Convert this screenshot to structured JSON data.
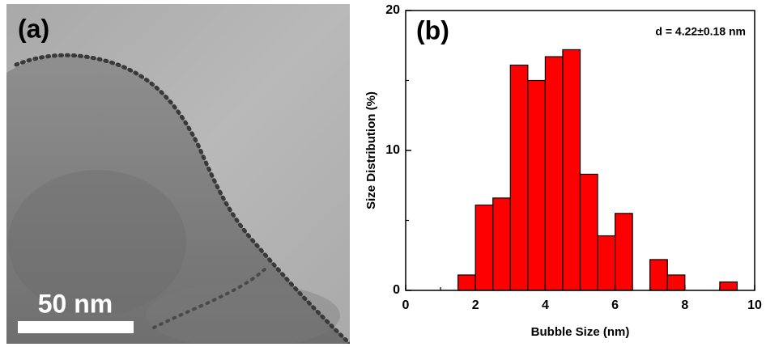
{
  "image_panel": {
    "label": "(a)",
    "scale_bar": "50 nm"
  },
  "chart_data": {
    "type": "histogram",
    "panel_label": "(b)",
    "annotation": "d = 4.22±0.18 nm",
    "x_label": "Bubble Size (nm)",
    "y_label": "Size Distribution (%)",
    "bins": [
      1.5,
      2,
      2.5,
      3,
      3.5,
      4,
      4.5,
      5,
      5.5,
      6,
      6.5,
      7,
      7.5,
      8,
      8.5,
      9,
      9.5
    ],
    "values": [
      1.1,
      6.1,
      6.6,
      16.1,
      15.0,
      16.7,
      17.2,
      8.3,
      3.9,
      5.5,
      0,
      2.2,
      1.1,
      0,
      0,
      0.6
    ],
    "color": "#ff0000",
    "xlim": [
      0,
      10
    ],
    "xticks": [
      0,
      2,
      4,
      6,
      8,
      10
    ],
    "xminorticks": [
      1,
      3,
      5,
      7,
      9
    ],
    "ylim": [
      0,
      20
    ],
    "yticks": [
      0,
      10,
      20
    ],
    "yminorticks": [
      5,
      15
    ]
  }
}
